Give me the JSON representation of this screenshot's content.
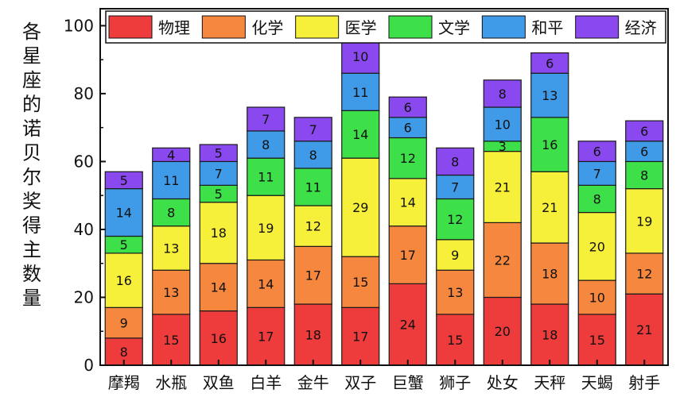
{
  "chart_data": {
    "type": "bar",
    "stacked": true,
    "ylabel": "各星座的诺贝尔奖得主数量",
    "ylim": [
      0,
      105
    ],
    "yticks": [
      0,
      20,
      40,
      60,
      80,
      100
    ],
    "grid": false,
    "legend_position": "top",
    "categories": [
      "摩羯",
      "水瓶",
      "双鱼",
      "白羊",
      "金牛",
      "双子",
      "巨蟹",
      "狮子",
      "处女",
      "天秤",
      "天蝎",
      "射手"
    ],
    "series": [
      {
        "name": "物理",
        "color": "#ee3b3b",
        "values": [
          8,
          15,
          16,
          17,
          18,
          17,
          24,
          15,
          20,
          18,
          15,
          21
        ]
      },
      {
        "name": "化学",
        "color": "#f5883e",
        "values": [
          9,
          13,
          14,
          14,
          17,
          15,
          17,
          13,
          22,
          18,
          10,
          12
        ]
      },
      {
        "name": "医学",
        "color": "#f7f03a",
        "values": [
          16,
          13,
          18,
          19,
          12,
          29,
          14,
          9,
          21,
          21,
          20,
          19
        ]
      },
      {
        "name": "文学",
        "color": "#3ee04a",
        "values": [
          5,
          8,
          5,
          11,
          11,
          14,
          12,
          12,
          3,
          16,
          8,
          8
        ]
      },
      {
        "name": "和平",
        "color": "#3f9be8",
        "values": [
          14,
          11,
          7,
          8,
          8,
          11,
          6,
          7,
          10,
          13,
          7,
          6
        ]
      },
      {
        "name": "经济",
        "color": "#8a49ee",
        "values": [
          5,
          4,
          5,
          7,
          7,
          10,
          6,
          8,
          8,
          6,
          6,
          6
        ]
      }
    ]
  }
}
